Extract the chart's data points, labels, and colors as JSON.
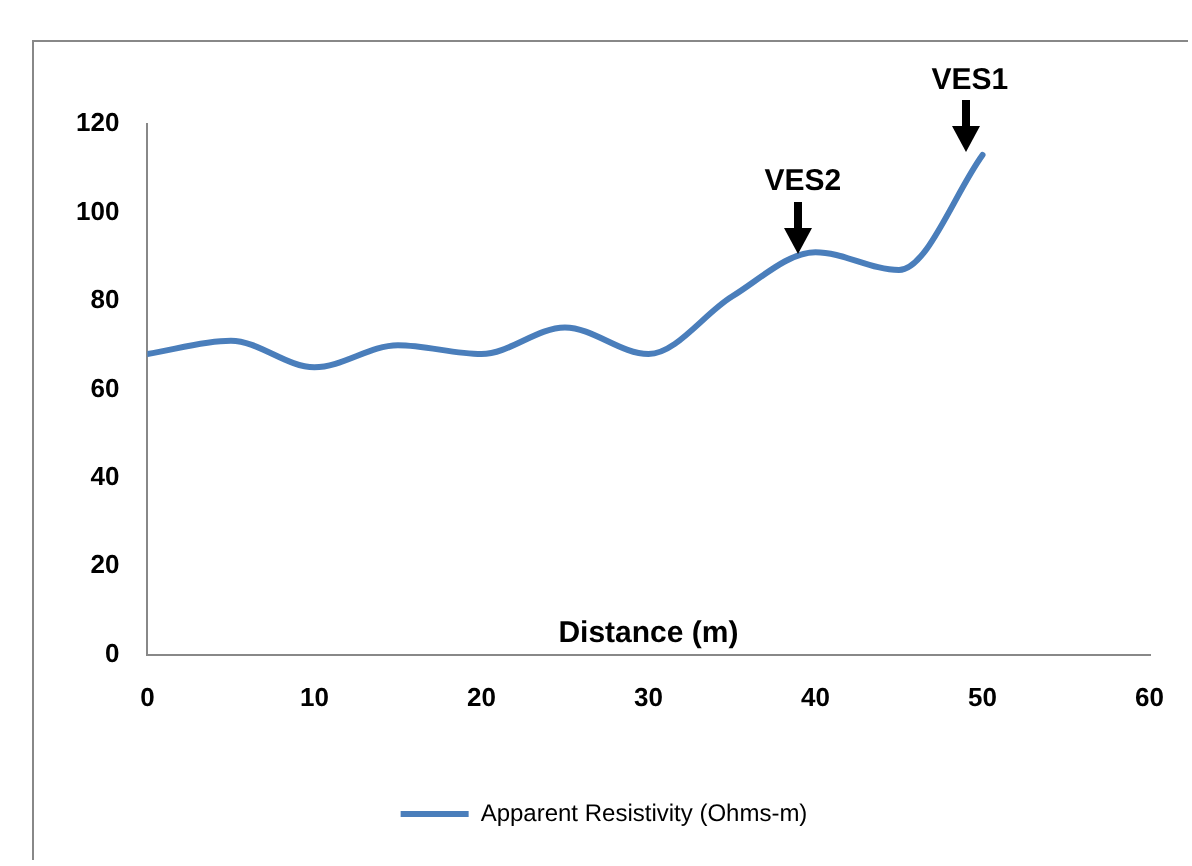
{
  "chart_data": {
    "type": "line",
    "xlabel": "Distance (m)",
    "x": [
      0,
      5,
      10,
      15,
      20,
      25,
      30,
      35,
      40,
      45,
      50
    ],
    "series": [
      {
        "name": "Apparent Resistivity (Ohms-m)",
        "color": "#4a7ebb",
        "values": [
          68,
          71,
          65,
          70,
          68,
          74,
          68,
          81,
          91,
          87,
          113
        ]
      }
    ],
    "xlim": [
      0,
      60
    ],
    "xticks": [
      0,
      10,
      20,
      30,
      40,
      50,
      60
    ],
    "ylim": [
      0,
      120
    ],
    "yticks": [
      0,
      20,
      40,
      60,
      80,
      100,
      120
    ],
    "grid": false,
    "legend": "bottom",
    "marker": "none",
    "line_style": "solid",
    "annotations": [
      {
        "text": "VES2",
        "x": 39,
        "y": 89
      },
      {
        "text": "VES1",
        "x": 49,
        "y": 112
      }
    ]
  }
}
